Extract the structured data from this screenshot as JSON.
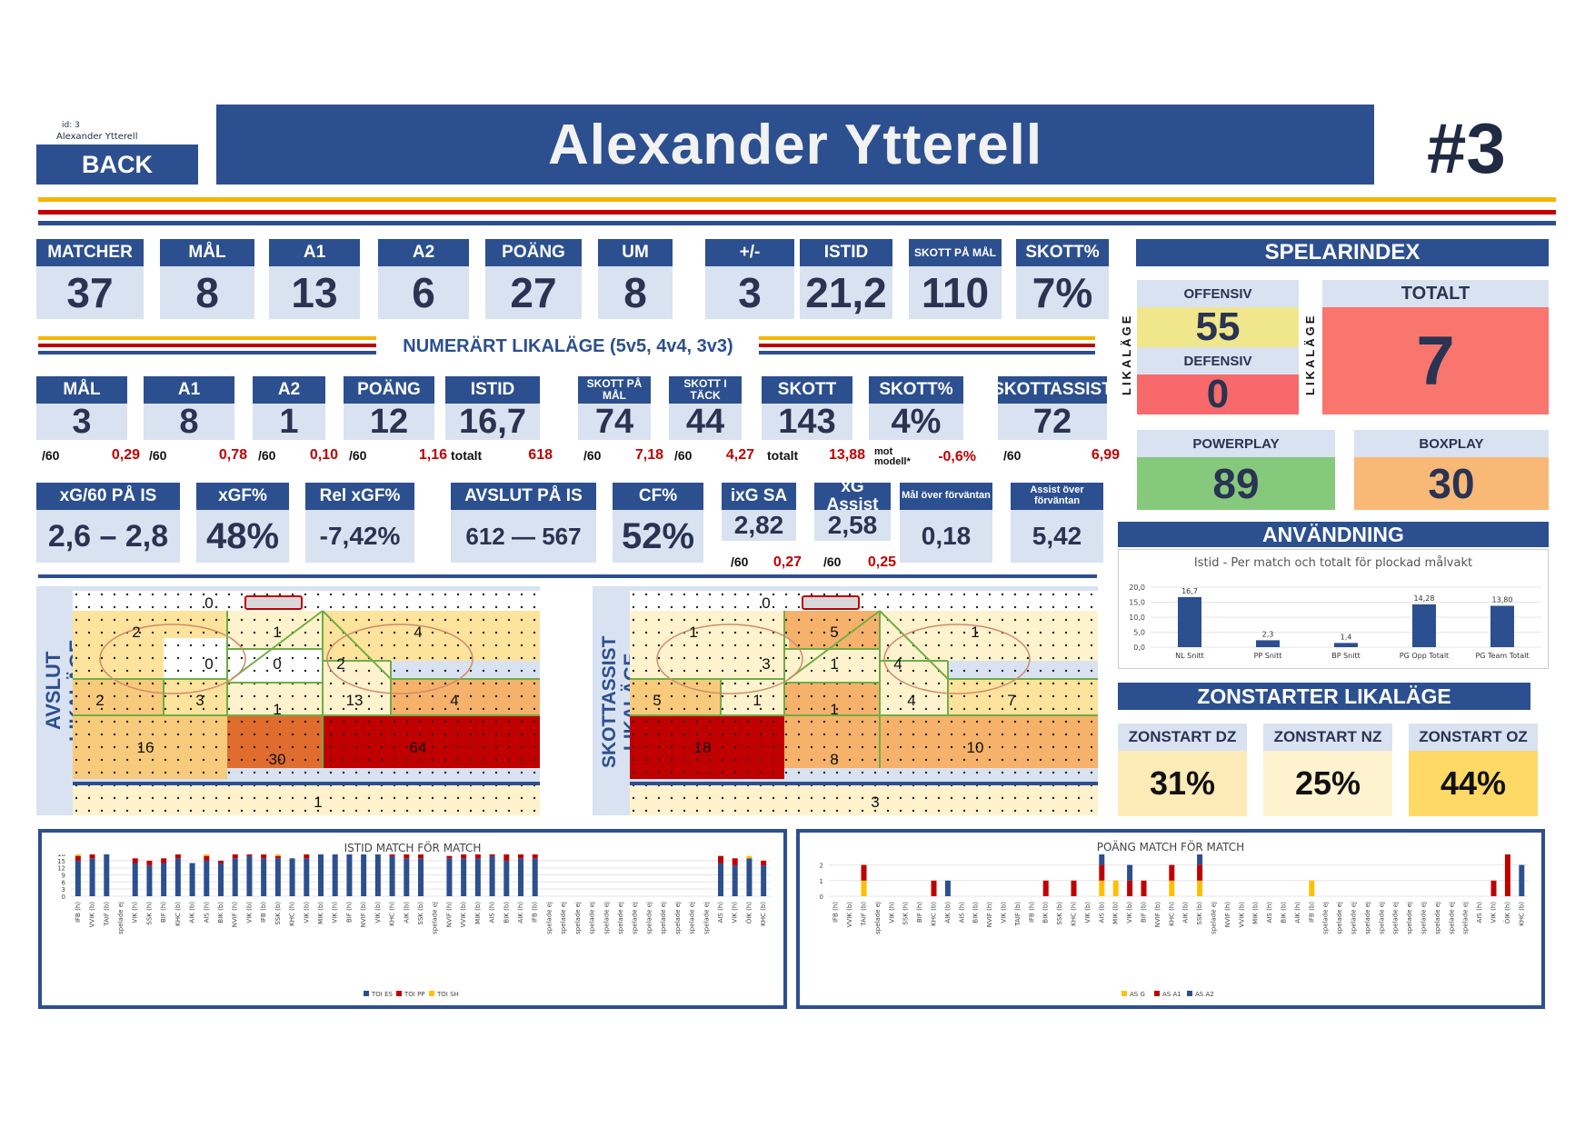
{
  "header": {
    "id_label": "id:",
    "id_value": "3",
    "small_name": "Alexander Ytterell",
    "back_label": "BACK",
    "player_name": "Alexander Ytterell",
    "jersey": "#3"
  },
  "top_stats": [
    {
      "label": "MATCHER",
      "value": "37"
    },
    {
      "label": "MÅL",
      "value": "8"
    },
    {
      "label": "A1",
      "value": "13"
    },
    {
      "label": "A2",
      "value": "6"
    },
    {
      "label": "POÄNG",
      "value": "27"
    },
    {
      "label": "UM",
      "value": "8"
    },
    {
      "label": "+/-",
      "value": "3"
    },
    {
      "label": "ISTID",
      "value": "21,2"
    },
    {
      "label": "SKOTT PÅ MÅL",
      "value": "110"
    },
    {
      "label": "SKOTT%",
      "value": "7%"
    }
  ],
  "even_title": "NUMERÄRT LIKALÄGE (5v5, 4v4, 3v3)",
  "even_stats": [
    {
      "label": "MÅL",
      "value": "3",
      "per_label": "/60",
      "per_value": "0,29"
    },
    {
      "label": "A1",
      "value": "8",
      "per_label": "/60",
      "per_value": "0,78"
    },
    {
      "label": "A2",
      "value": "1",
      "per_label": "/60",
      "per_value": "0,10"
    },
    {
      "label": "POÄNG",
      "value": "12",
      "per_label": "/60",
      "per_value": "1,16"
    },
    {
      "label": "ISTID",
      "value": "16,7",
      "per_label": "totalt",
      "per_value": "618"
    },
    {
      "label": "SKOTT PÅ MÅL",
      "value": "74",
      "per_label": "/60",
      "per_value": "7,18"
    },
    {
      "label": "SKOTT I TÄCK",
      "value": "44",
      "per_label": "/60",
      "per_value": "4,27"
    },
    {
      "label": "SKOTT",
      "value": "143",
      "per_label": "totalt",
      "per_value": "13,88"
    },
    {
      "label": "SKOTT%",
      "value": "4%",
      "per_label": "mot modell*",
      "per_value": "-0,6%"
    },
    {
      "label": "SKOTTASSIST",
      "value": "72",
      "per_label": "/60",
      "per_value": "6,99"
    }
  ],
  "xg_stats": [
    {
      "label": "xG/60 PÅ IS",
      "value": "2,6 – 2,8"
    },
    {
      "label": "xGF%",
      "value": "48%"
    },
    {
      "label": "Rel xGF%",
      "value": "-7,42%"
    },
    {
      "label": "AVSLUT PÅ IS",
      "value": "612 — 567"
    },
    {
      "label": "CF%",
      "value": "52%"
    },
    {
      "label": "ixG SA",
      "value": "2,82",
      "per_label": "/60",
      "per_value": "0,27"
    },
    {
      "label": "xG Assist",
      "value": "2,58",
      "per_label": "/60",
      "per_value": "0,25"
    },
    {
      "label": "Mål över förväntan",
      "value": "0,18"
    },
    {
      "label": "Assist över förväntan",
      "value": "5,42"
    }
  ],
  "index": {
    "title": "SPELARINDEX",
    "side_label": "LIKALÄGE",
    "offensiv_label": "OFFENSIV",
    "offensiv": "55",
    "defensiv_label": "DEFENSIV",
    "defensiv": "0",
    "totalt_label": "TOTALT",
    "totalt": "7",
    "pp_label": "POWERPLAY",
    "pp": "89",
    "bp_label": "BOXPLAY",
    "bp": "30",
    "colors": {
      "off": "#f0e68c",
      "def": "#f8696b",
      "tot": "#f8766d",
      "pp": "#86c97d",
      "bp": "#f8b977"
    }
  },
  "usage": {
    "title": "ANVÄNDNING",
    "chart_title": "Istid - Per match och totalt för plockad målvakt"
  },
  "zonstarter": {
    "title": "ZONSTARTER LIKALÄGE",
    "items": [
      {
        "label": "ZONSTART DZ",
        "value": "31%"
      },
      {
        "label": "ZONSTART NZ",
        "value": "25%"
      },
      {
        "label": "ZONSTART OZ",
        "value": "44%"
      }
    ]
  },
  "rink_left": {
    "title": "AVSLUT LIKALÄGE",
    "zones": [
      "0",
      "2",
      "1",
      "4",
      "0",
      "0",
      "2",
      "2",
      "3",
      "1",
      "13",
      "4",
      "16",
      "30",
      "64",
      "1"
    ]
  },
  "rink_right": {
    "title": "SKOTTASSIST LIKALÄGE",
    "zones": [
      "0",
      "1",
      "5",
      "1",
      "3",
      "1",
      "4",
      "5",
      "1",
      "1",
      "4",
      "7",
      "18",
      "8",
      "10",
      "3"
    ]
  },
  "istid_title": "ISTID MATCH FÖR MATCH",
  "poang_title": "POÄNG MATCH FÖR MATCH",
  "chart_data": [
    {
      "type": "bar",
      "title": "Istid - Per match och totalt för plockad målvakt",
      "categories": [
        "NL Snitt",
        "PP Snitt",
        "BP Snitt",
        "PG Opp Totalt",
        "PG Team Totalt"
      ],
      "values": [
        16.7,
        2.3,
        1.4,
        14.28,
        13.8
      ],
      "labels": [
        "16,7",
        "2,3",
        "1,4",
        "14,28",
        "13,80"
      ],
      "ylim": [
        0,
        20
      ],
      "yticks": [
        "20,0",
        "15,0",
        "10,0",
        "5,0",
        "0,0"
      ],
      "color": "#2c4f8f"
    },
    {
      "type": "bar",
      "title": "ISTID MATCH FÖR MATCH",
      "stacked": true,
      "ylim": [
        0,
        33
      ],
      "yticks": [
        "33",
        "30",
        "27",
        "24",
        "21",
        "18",
        "15",
        "12",
        "9",
        "6",
        "3",
        "0"
      ],
      "categories": [
        "IFB (h)",
        "VVIK (b)",
        "TAIF (b)",
        "spelade ej",
        "VIK (h)",
        "SSK (h)",
        "BIF (h)",
        "KHC (b)",
        "AIK (b)",
        "AIS (h)",
        "BIK (b)",
        "NVIF (h)",
        "VIK (b)",
        "IFB (b)",
        "SSK (b)",
        "KHC (h)",
        "VIK (b)",
        "MIK (b)",
        "VIK (h)",
        "BIF (h)",
        "NVIF (b)",
        "VIK (b)",
        "KHC (h)",
        "AIK (b)",
        "SSK (b)",
        "spelade ej",
        "NVIF (h)",
        "VVIK (b)",
        "MIK (b)",
        "AIS (h)",
        "BIK (b)",
        "AIK (h)",
        "IFB (b)",
        "spelade ej",
        "spelade ej",
        "spelade ej",
        "spelade ej",
        "spelade ej",
        "spelade ej",
        "spelade ej",
        "spelade ej",
        "spelade ej",
        "spelade ej",
        "spelade ej",
        "spelade ej",
        "AIS (h)",
        "VIK (h)",
        "ÖIK (h)",
        "KHC (b)"
      ],
      "series": [
        {
          "name": "TOI ES",
          "color": "#2c4f8f",
          "values": [
            15,
            16,
            19,
            0,
            14,
            13,
            14,
            16,
            14,
            15,
            14,
            16,
            17,
            16,
            16,
            16,
            16,
            19,
            19,
            18,
            19,
            18,
            17,
            16,
            16,
            0,
            16,
            16,
            16,
            17,
            15,
            16,
            16,
            0,
            0,
            0,
            0,
            0,
            0,
            0,
            0,
            0,
            0,
            0,
            0,
            14,
            13,
            16,
            13
          ]
        },
        {
          "name": "TOI PP",
          "color": "#c00000",
          "values": [
            2,
            2,
            0,
            0,
            2,
            2,
            2,
            2,
            0,
            2,
            1,
            2,
            2,
            2,
            1,
            0,
            2,
            4,
            3,
            1,
            1,
            2,
            3,
            2,
            2,
            0,
            1,
            2,
            3,
            2,
            3,
            2,
            2,
            0,
            0,
            0,
            0,
            0,
            0,
            0,
            0,
            0,
            0,
            0,
            0,
            3,
            3,
            0,
            2
          ]
        },
        {
          "name": "TOI SH",
          "color": "#ffc000",
          "values": [
            1,
            1,
            3,
            0,
            0,
            0,
            0,
            0,
            0,
            1,
            0,
            1,
            1,
            0,
            1,
            0,
            1,
            4,
            0,
            0,
            1,
            0,
            0,
            0,
            0,
            0,
            0,
            1,
            1,
            2,
            2,
            0,
            1,
            0,
            0,
            0,
            0,
            0,
            0,
            0,
            0,
            0,
            0,
            0,
            0,
            0,
            0,
            1,
            0
          ]
        }
      ]
    },
    {
      "type": "bar",
      "title": "POÄNG MATCH FÖR MATCH",
      "stacked": true,
      "ylim": [
        0,
        5
      ],
      "yticks": [
        "5",
        "4",
        "3",
        "2",
        "1",
        "0"
      ],
      "categories": [
        "IFB (h)",
        "VVIK (b)",
        "TAIF (b)",
        "spelade ej",
        "VIK (h)",
        "SSK (h)",
        "BIF (h)",
        "KHC (b)",
        "AIK (b)",
        "AIS (h)",
        "BIK (b)",
        "NVIF (h)",
        "VIK (b)",
        "TAIF (b)",
        "IFB (h)",
        "BIK (b)",
        "SSK (b)",
        "KHC (h)",
        "VIK (b)",
        "AIS (b)",
        "MIK (b)",
        "VIK (b)",
        "BIF (b)",
        "NVIF (b)",
        "KHC (h)",
        "AIK (b)",
        "SSK (b)",
        "spelade ej",
        "NVIF (h)",
        "VVIK (b)",
        "MIK (b)",
        "AIS (h)",
        "BIK (b)",
        "AIK (h)",
        "IFB (b)",
        "spelade ej",
        "spelade ej",
        "spelade ej",
        "spelade ej",
        "spelade ej",
        "spelade ej",
        "spelade ej",
        "spelade ej",
        "spelade ej",
        "spelade ej",
        "spelade ej",
        "AIS (h)",
        "VIK (h)",
        "ÖIK (h)",
        "KHC (b)"
      ],
      "series": [
        {
          "name": "AS G",
          "color": "#ffc000",
          "values": [
            0,
            0,
            1,
            0,
            0,
            0,
            0,
            0,
            0,
            0,
            0,
            0,
            0,
            0,
            0,
            0,
            0,
            0,
            0,
            1,
            1,
            0,
            0,
            0,
            1,
            0,
            1,
            0,
            0,
            0,
            0,
            0,
            0,
            0,
            1,
            0,
            0,
            0,
            0,
            0,
            0,
            0,
            0,
            0,
            0,
            0,
            0,
            0,
            0,
            0
          ]
        },
        {
          "name": "AS A1",
          "color": "#c00000",
          "values": [
            0,
            0,
            1,
            0,
            0,
            0,
            0,
            1,
            0,
            0,
            0,
            0,
            0,
            0,
            0,
            1,
            0,
            1,
            0,
            1,
            0,
            1,
            1,
            0,
            1,
            0,
            1,
            0,
            0,
            0,
            0,
            0,
            0,
            0,
            0,
            0,
            0,
            0,
            0,
            0,
            0,
            0,
            0,
            0,
            0,
            0,
            0,
            1,
            4,
            0
          ]
        },
        {
          "name": "AS A2",
          "color": "#2c4f8f",
          "values": [
            0,
            0,
            0,
            0,
            0,
            0,
            0,
            0,
            1,
            0,
            0,
            0,
            0,
            0,
            0,
            0,
            0,
            0,
            0,
            1,
            0,
            1,
            0,
            0,
            0,
            0,
            1,
            0,
            0,
            0,
            0,
            0,
            0,
            0,
            0,
            0,
            0,
            0,
            0,
            0,
            0,
            0,
            0,
            0,
            0,
            0,
            0,
            0,
            0,
            2
          ]
        }
      ]
    }
  ]
}
